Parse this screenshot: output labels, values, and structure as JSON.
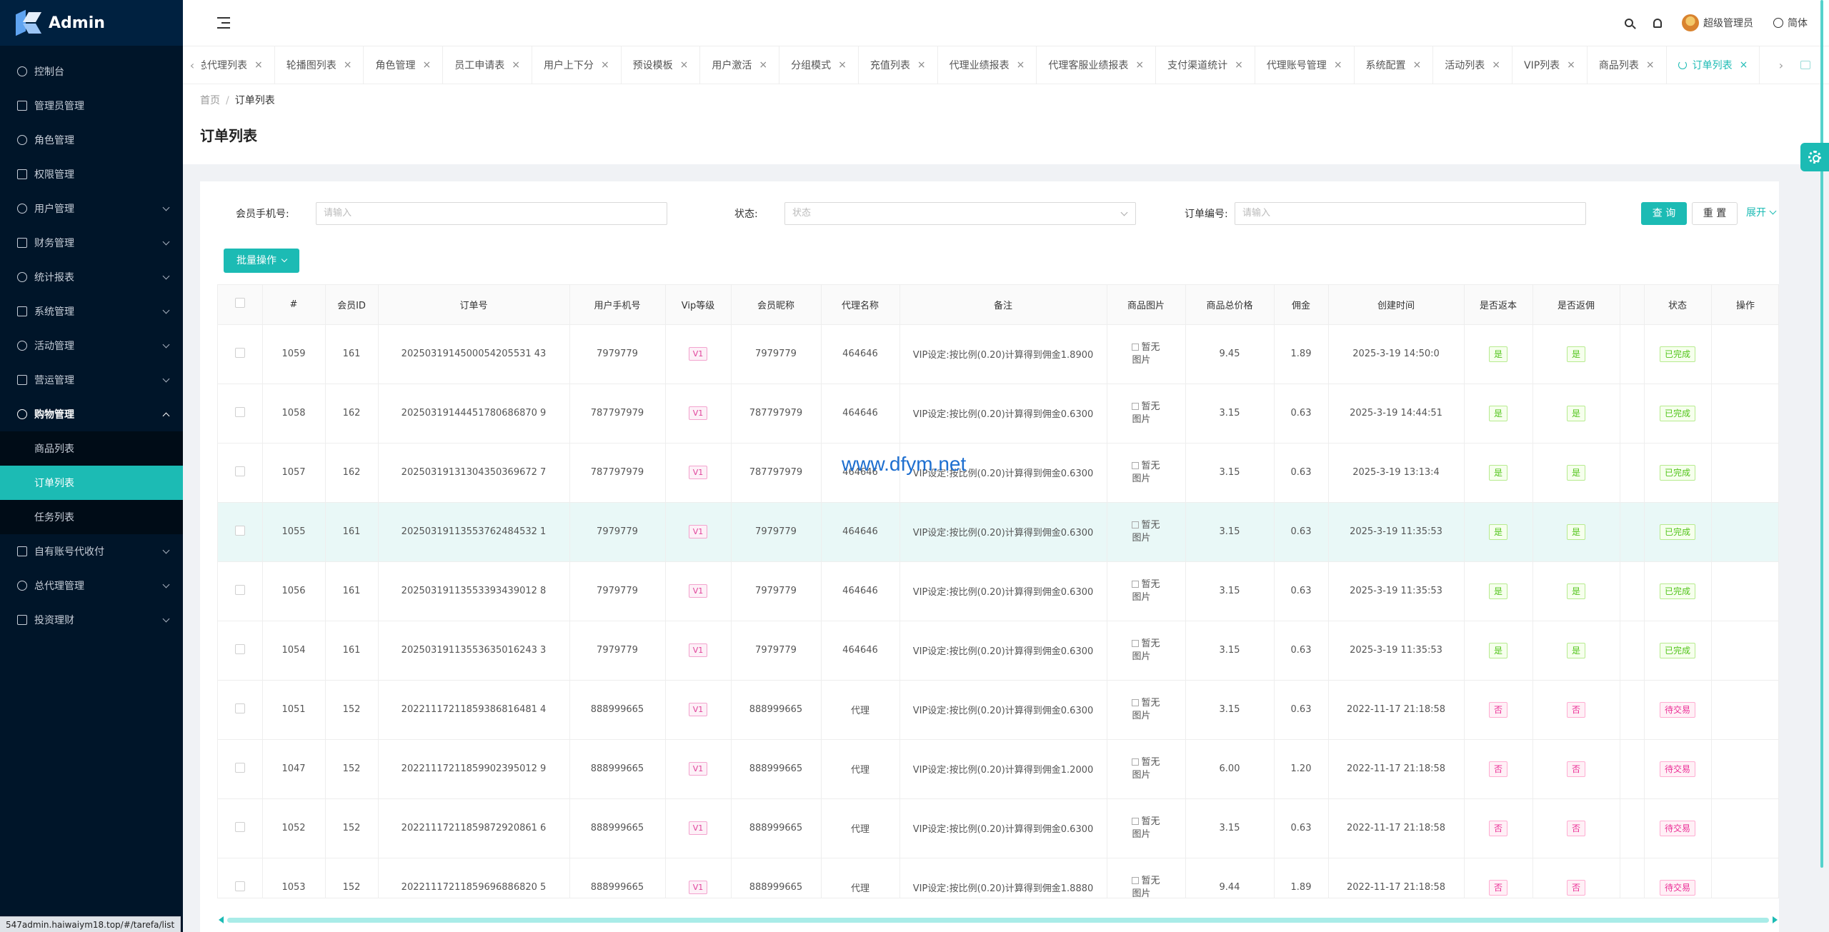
{
  "app": {
    "title": "Admin"
  },
  "sidebar": {
    "items": [
      {
        "label": "控制台",
        "icon": "dashboard-icon",
        "expandable": false
      },
      {
        "label": "管理员管理",
        "icon": "user-icon",
        "expandable": false
      },
      {
        "label": "角色管理",
        "icon": "team-icon",
        "expandable": false
      },
      {
        "label": "权限管理",
        "icon": "permission-icon",
        "expandable": false
      },
      {
        "label": "用户管理",
        "icon": "user-icon",
        "expandable": true
      },
      {
        "label": "财务管理",
        "icon": "money-icon",
        "expandable": true
      },
      {
        "label": "统计报表",
        "icon": "chart-icon",
        "expandable": true
      },
      {
        "label": "系统管理",
        "icon": "gear-icon",
        "expandable": true
      },
      {
        "label": "活动管理",
        "icon": "gift-icon",
        "expandable": true
      },
      {
        "label": "营运管理",
        "icon": "operation-icon",
        "expandable": true
      },
      {
        "label": "购物管理",
        "icon": "shop-icon",
        "expandable": true,
        "open": true,
        "children": [
          {
            "label": "商品列表",
            "active": false
          },
          {
            "label": "订单列表",
            "active": true
          },
          {
            "label": "任务列表",
            "active": false
          }
        ]
      },
      {
        "label": "自有账号代收付",
        "icon": "account-icon",
        "expandable": true
      },
      {
        "label": "总代理管理",
        "icon": "agent-icon",
        "expandable": true
      },
      {
        "label": "投资理财",
        "icon": "invest-icon",
        "expandable": true
      }
    ]
  },
  "header": {
    "user_name": "超级管理员",
    "language": "简体"
  },
  "tabs": [
    {
      "label": "总代理列表",
      "active": false
    },
    {
      "label": "轮播图列表",
      "active": false
    },
    {
      "label": "角色管理",
      "active": false
    },
    {
      "label": "员工申请表",
      "active": false
    },
    {
      "label": "用户上下分",
      "active": false
    },
    {
      "label": "预设模板",
      "active": false
    },
    {
      "label": "用户激活",
      "active": false
    },
    {
      "label": "分组模式",
      "active": false
    },
    {
      "label": "充值列表",
      "active": false
    },
    {
      "label": "代理业绩报表",
      "active": false
    },
    {
      "label": "代理客服业绩报表",
      "active": false
    },
    {
      "label": "支付渠道统计",
      "active": false
    },
    {
      "label": "代理账号管理",
      "active": false
    },
    {
      "label": "系统配置",
      "active": false
    },
    {
      "label": "活动列表",
      "active": false
    },
    {
      "label": "VIP列表",
      "active": false
    },
    {
      "label": "商品列表",
      "active": false
    },
    {
      "label": "订单列表",
      "active": true
    }
  ],
  "breadcrumb": {
    "home": "首页",
    "current": "订单列表"
  },
  "page_title": "订单列表",
  "filters": {
    "phone_label": "会员手机号:",
    "phone_placeholder": "请输入",
    "status_label": "状态:",
    "status_placeholder": "状态",
    "order_label": "订单编号:",
    "order_placeholder": "请输入",
    "query_label": "查 询",
    "reset_label": "重 置",
    "expand_label": "展开"
  },
  "batch_label": "批量操作",
  "table": {
    "columns": [
      "#",
      "会员ID",
      "订单号",
      "用户手机号",
      "Vip等级",
      "会员昵称",
      "代理名称",
      "备注",
      "商品图片",
      "商品总价格",
      "佣金",
      "创建时间",
      "是否返本",
      "是否返佣",
      "",
      "状态",
      "操作"
    ],
    "image_placeholder_line1": "暂无",
    "image_placeholder_line2": "图片",
    "rows": [
      {
        "id": "1059",
        "member_id": "161",
        "order_no": "2025031914500054205531 43",
        "phone": "7979779",
        "vip": "V1",
        "nickname": "7979779",
        "agent": "464646",
        "remark": "VIP设定:按比例(0.20)计算得到佣金1.8900",
        "price": "9.45",
        "commission": "1.89",
        "created": "2025-3-19 14:50:0",
        "return_principal": "是",
        "return_commission": "是",
        "status": "已完成",
        "status_type": "done",
        "highlight": false
      },
      {
        "id": "1058",
        "member_id": "162",
        "order_no": "20250319144451780686870 9",
        "phone": "787797979",
        "vip": "V1",
        "nickname": "787797979",
        "agent": "464646",
        "remark": "VIP设定:按比例(0.20)计算得到佣金0.6300",
        "price": "3.15",
        "commission": "0.63",
        "created": "2025-3-19 14:44:51",
        "return_principal": "是",
        "return_commission": "是",
        "status": "已完成",
        "status_type": "done",
        "highlight": false
      },
      {
        "id": "1057",
        "member_id": "162",
        "order_no": "20250319131304350369672 7",
        "phone": "787797979",
        "vip": "V1",
        "nickname": "787797979",
        "agent": "464646",
        "remark": "VIP设定:按比例(0.20)计算得到佣金0.6300",
        "price": "3.15",
        "commission": "0.63",
        "created": "2025-3-19 13:13:4",
        "return_principal": "是",
        "return_commission": "是",
        "status": "已完成",
        "status_type": "done",
        "highlight": false
      },
      {
        "id": "1055",
        "member_id": "161",
        "order_no": "20250319113553762484532 1",
        "phone": "7979779",
        "vip": "V1",
        "nickname": "7979779",
        "agent": "464646",
        "remark": "VIP设定:按比例(0.20)计算得到佣金0.6300",
        "price": "3.15",
        "commission": "0.63",
        "created": "2025-3-19 11:35:53",
        "return_principal": "是",
        "return_commission": "是",
        "status": "已完成",
        "status_type": "done",
        "highlight": true
      },
      {
        "id": "1056",
        "member_id": "161",
        "order_no": "20250319113553393439012 8",
        "phone": "7979779",
        "vip": "V1",
        "nickname": "7979779",
        "agent": "464646",
        "remark": "VIP设定:按比例(0.20)计算得到佣金0.6300",
        "price": "3.15",
        "commission": "0.63",
        "created": "2025-3-19 11:35:53",
        "return_principal": "是",
        "return_commission": "是",
        "status": "已完成",
        "status_type": "done",
        "highlight": false
      },
      {
        "id": "1054",
        "member_id": "161",
        "order_no": "20250319113553635016243 3",
        "phone": "7979779",
        "vip": "V1",
        "nickname": "7979779",
        "agent": "464646",
        "remark": "VIP设定:按比例(0.20)计算得到佣金0.6300",
        "price": "3.15",
        "commission": "0.63",
        "created": "2025-3-19 11:35:53",
        "return_principal": "是",
        "return_commission": "是",
        "status": "已完成",
        "status_type": "done",
        "highlight": false
      },
      {
        "id": "1051",
        "member_id": "152",
        "order_no": "20221117211859386816481 4",
        "phone": "888999665",
        "vip": "V1",
        "nickname": "888999665",
        "agent": "代理",
        "remark": "VIP设定:按比例(0.20)计算得到佣金0.6300",
        "price": "3.15",
        "commission": "0.63",
        "created": "2022-11-17 21:18:58",
        "return_principal": "否",
        "return_commission": "否",
        "status": "待交易",
        "status_type": "wait",
        "highlight": false
      },
      {
        "id": "1047",
        "member_id": "152",
        "order_no": "20221117211859902395012 9",
        "phone": "888999665",
        "vip": "V1",
        "nickname": "888999665",
        "agent": "代理",
        "remark": "VIP设定:按比例(0.20)计算得到佣金1.2000",
        "price": "6.00",
        "commission": "1.20",
        "created": "2022-11-17 21:18:58",
        "return_principal": "否",
        "return_commission": "否",
        "status": "待交易",
        "status_type": "wait",
        "highlight": false
      },
      {
        "id": "1052",
        "member_id": "152",
        "order_no": "20221117211859872920861 6",
        "phone": "888999665",
        "vip": "V1",
        "nickname": "888999665",
        "agent": "代理",
        "remark": "VIP设定:按比例(0.20)计算得到佣金0.6300",
        "price": "3.15",
        "commission": "0.63",
        "created": "2022-11-17 21:18:58",
        "return_principal": "否",
        "return_commission": "否",
        "status": "待交易",
        "status_type": "wait",
        "highlight": false
      },
      {
        "id": "1053",
        "member_id": "152",
        "order_no": "20221117211859696886820 5",
        "phone": "888999665",
        "vip": "V1",
        "nickname": "888999665",
        "agent": "代理",
        "remark": "VIP设定:按比例(0.20)计算得到佣金1.8880",
        "price": "9.44",
        "commission": "1.89",
        "created": "2022-11-17 21:18:58",
        "return_principal": "否",
        "return_commission": "否",
        "status": "待交易",
        "status_type": "wait",
        "highlight": false
      }
    ]
  },
  "watermark": "www.dfym.net",
  "status_url": "547admin.haiwaiym18.top/#/tarefa/list",
  "colors": {
    "accent": "#1cbbb4",
    "sidebar_bg": "#001529"
  }
}
